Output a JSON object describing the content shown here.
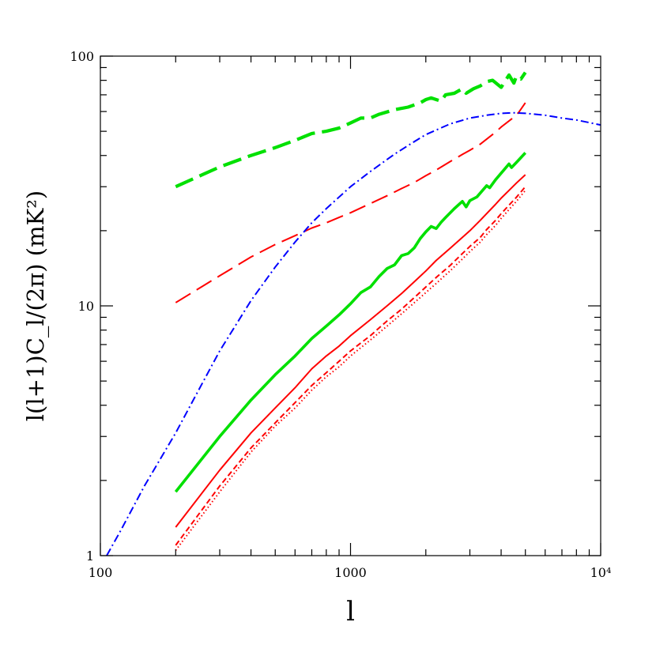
{
  "chart_data": {
    "type": "line",
    "title": "",
    "xlabel": "l",
    "ylabel": "l(l+1)C_l/(2π)  (mK²)",
    "xscale": "log",
    "yscale": "log",
    "xlim": [
      100,
      10000
    ],
    "ylim": [
      1,
      100
    ],
    "x_tick_labels": [
      "100",
      "1000",
      "10⁴"
    ],
    "y_tick_labels": [
      "1",
      "10",
      "100"
    ],
    "grid": false,
    "legend": "none",
    "series": [
      {
        "color": "#00e000",
        "style": "solid-thick",
        "x": [
          200,
          300,
          400,
          500,
          600,
          700,
          800,
          900,
          1000,
          1100,
          1200,
          1300,
          1400,
          1500,
          1600,
          1700,
          1800,
          1900,
          2000,
          2100,
          2200,
          2300,
          2400,
          2600,
          2800,
          2900,
          3000,
          3200,
          3500,
          3600,
          3800,
          4000,
          4300,
          4400,
          4600,
          5000
        ],
        "y": [
          1.8,
          3.0,
          4.2,
          5.3,
          6.3,
          7.4,
          8.3,
          9.2,
          10.2,
          11.3,
          11.9,
          13.1,
          14.1,
          14.6,
          15.9,
          16.2,
          17.1,
          18.6,
          19.8,
          20.8,
          20.4,
          21.6,
          22.6,
          24.5,
          26.2,
          24.9,
          26.4,
          27.3,
          30.3,
          29.7,
          32.0,
          34.0,
          37.0,
          35.8,
          37.5,
          41.0
        ]
      },
      {
        "color": "#00e000",
        "style": "dashed-thick",
        "x": [
          200,
          300,
          400,
          500,
          600,
          700,
          800,
          900,
          1000,
          1100,
          1200,
          1300,
          1500,
          1700,
          1900,
          2000,
          2100,
          2300,
          2400,
          2600,
          2800,
          2900,
          3100,
          3300,
          3500,
          3700,
          4000,
          4300,
          4500,
          4600,
          4800,
          5000
        ],
        "y": [
          30,
          36,
          40,
          43,
          46,
          49,
          50,
          51.5,
          54,
          56.5,
          56.5,
          58.5,
          61,
          62.5,
          65,
          67,
          68,
          66,
          70,
          71,
          74,
          71,
          74,
          76,
          79,
          80,
          75,
          84,
          78,
          83,
          81,
          86
        ]
      },
      {
        "color": "#ff0000",
        "style": "dashed-long",
        "x": [
          200,
          300,
          400,
          500,
          600,
          700,
          800,
          900,
          1000,
          1200,
          1400,
          1600,
          1800,
          2000,
          2200,
          2500,
          2800,
          3000,
          3300,
          3500,
          3800,
          4000,
          4400,
          4700,
          5000
        ],
        "y": [
          10.3,
          13.2,
          15.7,
          17.6,
          19.1,
          20.5,
          21.5,
          22.6,
          23.6,
          25.7,
          27.6,
          29.5,
          31.2,
          33.2,
          35.0,
          37.8,
          40.4,
          42.0,
          44.4,
          46.5,
          49.6,
          52.0,
          56.0,
          59.5,
          65.0
        ]
      },
      {
        "color": "#ff0000",
        "style": "solid",
        "x": [
          200,
          300,
          400,
          500,
          600,
          700,
          800,
          900,
          1000,
          1200,
          1400,
          1600,
          1800,
          2000,
          2200,
          2500,
          2800,
          3000,
          3300,
          3500,
          3800,
          4000,
          4300,
          4600,
          5000
        ],
        "y": [
          1.3,
          2.2,
          3.1,
          3.9,
          4.7,
          5.6,
          6.3,
          6.9,
          7.6,
          8.8,
          10.0,
          11.2,
          12.5,
          13.8,
          15.2,
          17.0,
          18.8,
          20.0,
          22.0,
          23.4,
          25.5,
          27.0,
          29.0,
          31.0,
          33.5
        ]
      },
      {
        "color": "#ff0000",
        "style": "dashed-short",
        "x": [
          200,
          300,
          400,
          500,
          600,
          700,
          800,
          900,
          1000,
          1200,
          1400,
          1600,
          1800,
          2000,
          2200,
          2500,
          2800,
          3000,
          3300,
          3500,
          3800,
          4000,
          4300,
          4600,
          5000
        ],
        "y": [
          1.1,
          1.9,
          2.7,
          3.4,
          4.1,
          4.8,
          5.4,
          6.0,
          6.6,
          7.6,
          8.7,
          9.7,
          10.8,
          11.9,
          13.0,
          14.5,
          16.2,
          17.3,
          18.8,
          20.2,
          22.0,
          23.4,
          25.3,
          27.2,
          30.0
        ]
      },
      {
        "color": "#ff0000",
        "style": "dotted",
        "x": [
          200,
          300,
          400,
          500,
          600,
          700,
          800,
          900,
          1000,
          1200,
          1400,
          1600,
          1800,
          2000,
          2200,
          2500,
          2800,
          3000,
          3300,
          3500,
          3800,
          4000,
          4300,
          4600,
          5000
        ],
        "y": [
          1.05,
          1.8,
          2.6,
          3.3,
          3.9,
          4.6,
          5.2,
          5.7,
          6.3,
          7.3,
          8.3,
          9.3,
          10.3,
          11.3,
          12.3,
          13.8,
          15.4,
          16.5,
          18.0,
          19.3,
          21.0,
          22.4,
          24.3,
          26.2,
          29.0
        ]
      },
      {
        "color": "#0000ff",
        "style": "dashdot",
        "x": [
          106,
          120,
          150,
          200,
          250,
          300,
          400,
          500,
          600,
          700,
          800,
          1000,
          1200,
          1500,
          1800,
          2000,
          2500,
          3000,
          3500,
          4000,
          4500,
          5000,
          6000,
          7000,
          8000,
          10000
        ],
        "y": [
          1.0,
          1.25,
          1.9,
          3.1,
          4.7,
          6.6,
          10.5,
          14.3,
          18.0,
          21.5,
          24.5,
          30.0,
          34.5,
          40.5,
          45.5,
          48.5,
          53.5,
          56.5,
          58.0,
          59.0,
          59.3,
          59.0,
          58.0,
          56.5,
          55.5,
          53.0
        ]
      }
    ]
  }
}
